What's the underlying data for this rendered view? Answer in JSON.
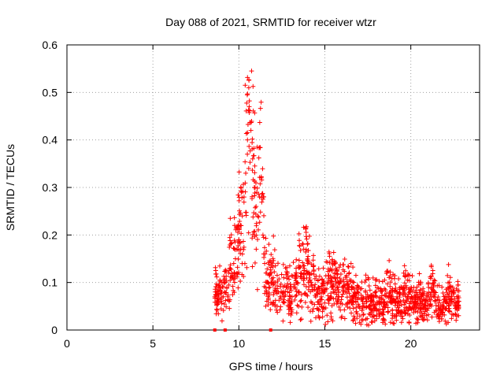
{
  "chart_data": {
    "type": "scatter",
    "title": "Day 088 of 2021, SRMTID for receiver wtzr",
    "xlabel": "GPS time / hours",
    "ylabel": "SRMTID / TECUs",
    "xlim": [
      0,
      24
    ],
    "ylim": [
      0,
      0.6
    ],
    "xticks": [
      0,
      5,
      10,
      15,
      20
    ],
    "xtick_labels": [
      "0",
      "5",
      "10",
      "15",
      "20"
    ],
    "yticks": [
      0,
      0.1,
      0.2,
      0.3,
      0.4,
      0.5,
      0.6
    ],
    "ytick_labels": [
      "0",
      "0.1",
      "0.2",
      "0.3",
      "0.4",
      "0.5",
      "0.6"
    ],
    "grid": true,
    "marker": "+",
    "color": "#ff0000",
    "series": [
      {
        "name": "SRMTID",
        "data_start_hours": 8.6,
        "data_end_hours": 22.8,
        "x": [
          8.6,
          8.7,
          8.8,
          8.9,
          9.0,
          9.1,
          9.2,
          9.3,
          9.4,
          9.5,
          9.6,
          9.7,
          9.8,
          9.9,
          10.0,
          10.1,
          10.2,
          10.3,
          10.4,
          10.5,
          10.6,
          10.7,
          10.8,
          10.9,
          11.0,
          11.1,
          11.2,
          11.3,
          11.4,
          11.5,
          11.6,
          11.7,
          11.8,
          11.9,
          12.0,
          12.2,
          12.4,
          12.6,
          12.8,
          13.0,
          13.2,
          13.4,
          13.6,
          13.8,
          14.0,
          14.2,
          14.4,
          14.6,
          14.8,
          15.0,
          15.2,
          15.4,
          15.6,
          15.8,
          16.0,
          16.2,
          16.4,
          16.6,
          16.8,
          17.0,
          17.2,
          17.4,
          17.6,
          17.8,
          18.0,
          18.2,
          18.4,
          18.6,
          18.8,
          19.0,
          19.2,
          19.4,
          19.6,
          19.8,
          20.0,
          20.2,
          20.4,
          20.6,
          20.8,
          21.0,
          21.2,
          21.4,
          21.6,
          21.8,
          22.0,
          22.2,
          22.4,
          22.6,
          22.8
        ],
        "y": [
          0.07,
          0.08,
          0.06,
          0.09,
          0.08,
          0.07,
          0.1,
          0.09,
          0.12,
          0.13,
          0.11,
          0.14,
          0.15,
          0.17,
          0.19,
          0.22,
          0.24,
          0.28,
          0.33,
          0.4,
          0.47,
          0.42,
          0.36,
          0.3,
          0.26,
          0.24,
          0.28,
          0.32,
          0.2,
          0.14,
          0.12,
          0.1,
          0.09,
          0.1,
          0.11,
          0.08,
          0.07,
          0.08,
          0.09,
          0.07,
          0.09,
          0.1,
          0.12,
          0.13,
          0.14,
          0.1,
          0.09,
          0.08,
          0.07,
          0.08,
          0.1,
          0.09,
          0.11,
          0.1,
          0.09,
          0.08,
          0.09,
          0.07,
          0.06,
          0.05,
          0.06,
          0.07,
          0.05,
          0.06,
          0.07,
          0.06,
          0.05,
          0.07,
          0.08,
          0.06,
          0.07,
          0.06,
          0.08,
          0.07,
          0.06,
          0.05,
          0.07,
          0.06,
          0.05,
          0.06,
          0.08,
          0.06,
          0.05,
          0.04,
          0.06,
          0.07,
          0.06,
          0.05,
          0.06
        ]
      }
    ],
    "gap_markers_x": [
      8.6,
      9.2,
      11.85
    ]
  }
}
